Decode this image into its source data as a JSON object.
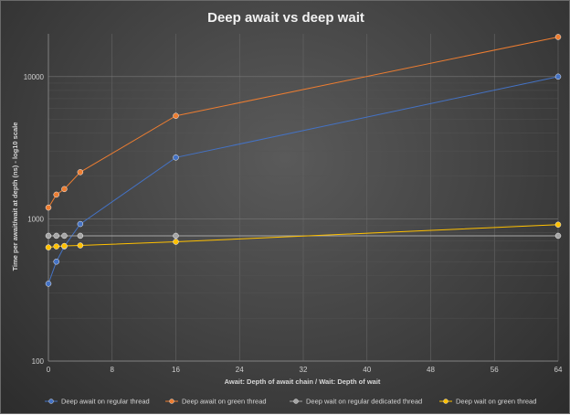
{
  "chart_data": {
    "type": "line",
    "title": "Deep await vs deep wait",
    "xlabel": "Await: Depth of await chain / Wait: Depth of wait",
    "ylabel": "Time per await/wait at depth (ns) - log10 scale",
    "x_scale": "linear",
    "y_scale": "log10",
    "xlim": [
      0,
      64
    ],
    "ylim": [
      100,
      20000
    ],
    "x_ticks": [
      0,
      8,
      16,
      24,
      32,
      40,
      48,
      56,
      64
    ],
    "y_ticks": [
      100,
      1000,
      10000
    ],
    "grid": true,
    "legend_position": "bottom",
    "series": [
      {
        "name": "Deep await on regular thread",
        "color": "#4472c4",
        "x": [
          0,
          1,
          2,
          4,
          16,
          64
        ],
        "values": [
          350,
          500,
          640,
          920,
          2700,
          10000
        ]
      },
      {
        "name": "Deep await on green thread",
        "color": "#ed7d31",
        "x": [
          0,
          1,
          2,
          4,
          16,
          64
        ],
        "values": [
          1200,
          1480,
          1620,
          2130,
          5300,
          19000
        ]
      },
      {
        "name": "Deep wait on regular dedicated thread",
        "color": "#a5a5a5",
        "x": [
          0,
          1,
          2,
          4,
          16,
          64
        ],
        "values": [
          760,
          760,
          760,
          760,
          760,
          760
        ]
      },
      {
        "name": "Deep wait on green thread",
        "color": "#ffc000",
        "x": [
          0,
          1,
          2,
          4,
          16,
          64
        ],
        "values": [
          630,
          640,
          645,
          650,
          690,
          910
        ]
      }
    ]
  }
}
